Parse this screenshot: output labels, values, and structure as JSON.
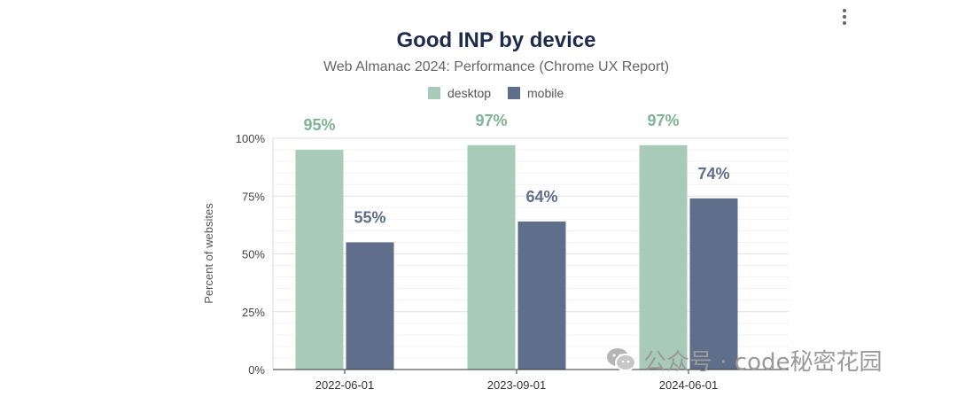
{
  "chart_data": {
    "type": "bar",
    "title": "Good INP by device",
    "subtitle": "Web Almanac 2024: Performance (Chrome UX Report)",
    "xlabel": "",
    "ylabel": "Percent of websites",
    "ylim": [
      0,
      100
    ],
    "yticks": [
      0,
      25,
      50,
      75,
      100
    ],
    "ytick_labels": [
      "0%",
      "25%",
      "50%",
      "75%",
      "100%"
    ],
    "grid": true,
    "legend_position": "top-center",
    "categories": [
      "2022-06-01",
      "2023-09-01",
      "2024-06-01"
    ],
    "series": [
      {
        "name": "desktop",
        "color": "#a8cbb9",
        "label_color": "#7fb596",
        "values": [
          95,
          97,
          97
        ],
        "value_labels": [
          "95%",
          "97%",
          "97%"
        ]
      },
      {
        "name": "mobile",
        "color": "#5f6e8b",
        "label_color": "#5f6e8b",
        "values": [
          55,
          64,
          74
        ],
        "value_labels": [
          "55%",
          "64%",
          "74%"
        ]
      }
    ]
  },
  "menu": {
    "icon": "more-vertical-icon"
  },
  "watermark": {
    "text": "公众号 · code秘密花园",
    "icon": "wechat-icon"
  }
}
